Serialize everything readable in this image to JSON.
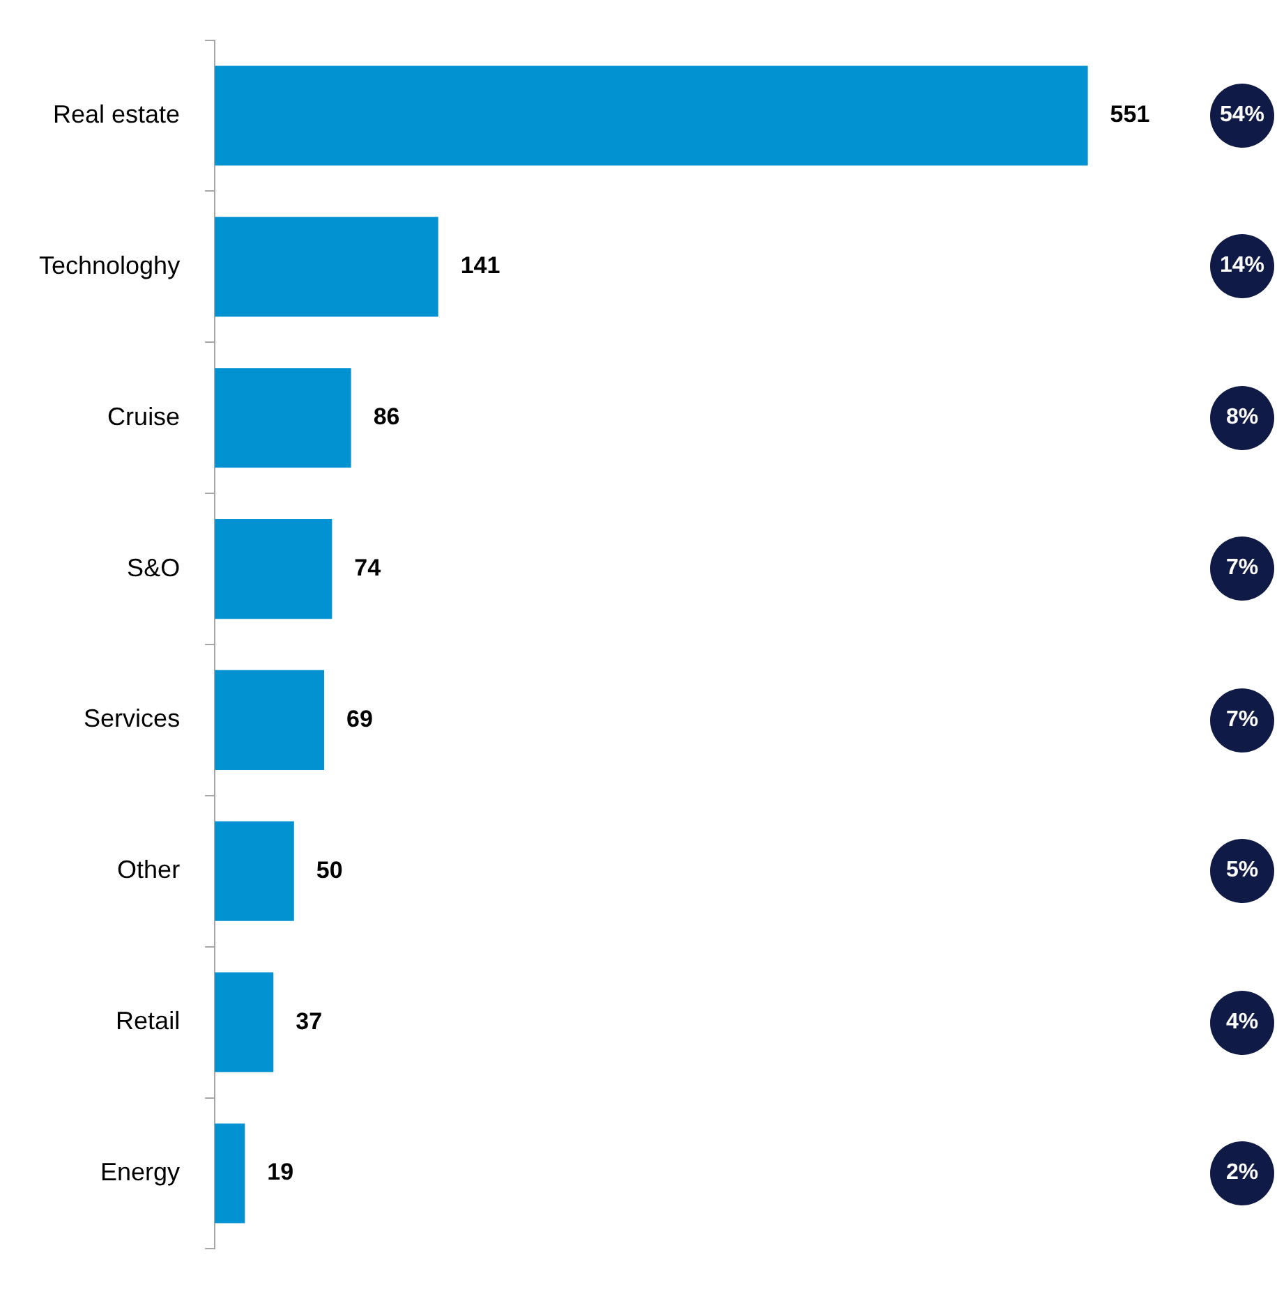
{
  "chart_data": {
    "type": "bar",
    "orientation": "horizontal",
    "categories": [
      "Real estate",
      "Technologhy",
      "Cruise",
      "S&O",
      "Services",
      "Other",
      "Retail",
      "Energy"
    ],
    "values": [
      551,
      141,
      86,
      74,
      69,
      50,
      37,
      19
    ],
    "color": "#0291d1",
    "data_labels": true,
    "grid": false,
    "legend": false,
    "tick_labels": "y",
    "annotations": [
      "54%",
      "14%",
      "8%",
      "7%",
      "7%",
      "5%",
      "4%",
      "2%"
    ]
  }
}
